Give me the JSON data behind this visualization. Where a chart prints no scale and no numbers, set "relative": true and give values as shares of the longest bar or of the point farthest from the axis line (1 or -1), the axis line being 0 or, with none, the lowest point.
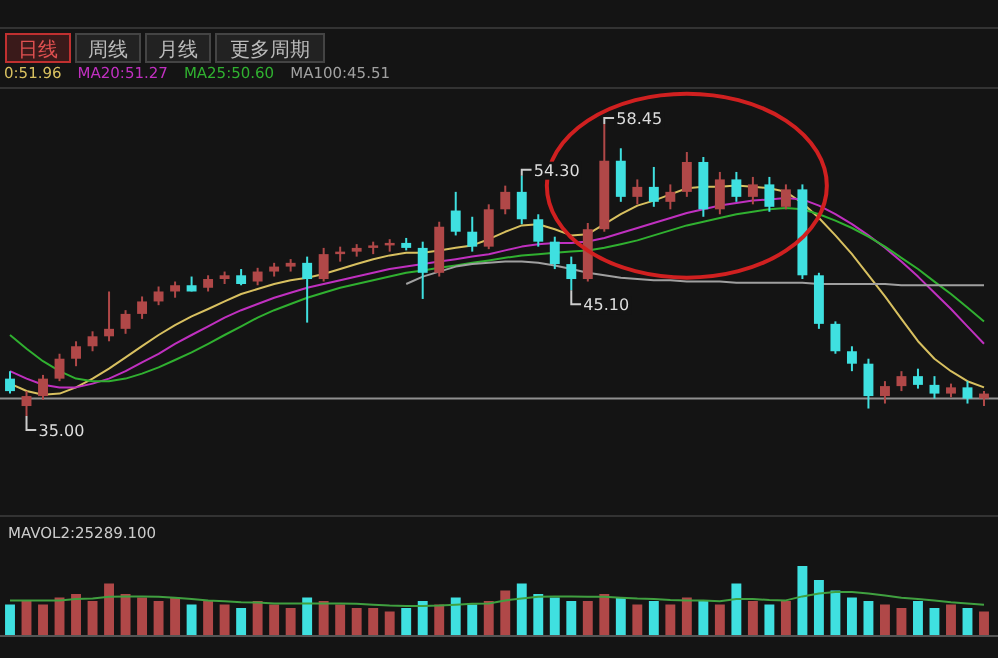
{
  "chart_data": [
    {
      "type": "candlestick",
      "categories": [
        null,
        null,
        null,
        null,
        null,
        null,
        null,
        null,
        null,
        null,
        null,
        null,
        null,
        null,
        null,
        null,
        null,
        null,
        null,
        null,
        null,
        null,
        null,
        null,
        null,
        null,
        null,
        null,
        null,
        null,
        null,
        null,
        null,
        null,
        null,
        null,
        null,
        null,
        null,
        null,
        null,
        null,
        null,
        null,
        null,
        null,
        null,
        null,
        null,
        null,
        null,
        null,
        null,
        null,
        null,
        null,
        null,
        null,
        null,
        null
      ],
      "ohlc": [
        [
          38.0,
          38.6,
          36.8,
          37.0
        ],
        [
          35.8,
          37.0,
          35.0,
          36.6
        ],
        [
          36.6,
          38.3,
          36.3,
          38.0
        ],
        [
          38.0,
          40.0,
          37.8,
          39.6
        ],
        [
          39.6,
          41.0,
          39.0,
          40.6
        ],
        [
          40.6,
          41.8,
          40.2,
          41.4
        ],
        [
          41.4,
          45.0,
          41.0,
          42.0
        ],
        [
          42.0,
          43.5,
          41.6,
          43.2
        ],
        [
          43.2,
          44.6,
          42.8,
          44.2
        ],
        [
          44.2,
          45.4,
          43.9,
          45.0
        ],
        [
          45.0,
          45.8,
          44.5,
          45.5
        ],
        [
          45.5,
          46.2,
          45.0,
          45.0
        ],
        [
          45.3,
          46.3,
          45.0,
          46.0
        ],
        [
          46.0,
          46.6,
          45.6,
          46.3
        ],
        [
          46.3,
          46.8,
          45.5,
          45.6
        ],
        [
          45.8,
          46.9,
          45.5,
          46.6
        ],
        [
          46.6,
          47.3,
          46.2,
          47.0
        ],
        [
          47.0,
          47.6,
          46.6,
          47.3
        ],
        [
          47.3,
          47.8,
          42.5,
          46.0
        ],
        [
          46.0,
          48.5,
          45.8,
          48.0
        ],
        [
          48.0,
          48.6,
          47.4,
          48.2
        ],
        [
          48.2,
          48.8,
          47.8,
          48.5
        ],
        [
          48.5,
          49.0,
          48.0,
          48.7
        ],
        [
          48.7,
          49.2,
          48.2,
          48.9
        ],
        [
          48.9,
          49.3,
          48.3,
          48.5
        ],
        [
          48.5,
          49.0,
          44.4,
          46.5
        ],
        [
          46.5,
          50.6,
          46.2,
          50.2
        ],
        [
          51.5,
          53.0,
          49.5,
          49.8
        ],
        [
          49.8,
          51.0,
          48.2,
          48.6
        ],
        [
          48.6,
          52.0,
          48.4,
          51.6
        ],
        [
          51.6,
          53.5,
          51.2,
          53.0
        ],
        [
          53.0,
          54.3,
          50.4,
          50.8
        ],
        [
          50.8,
          51.2,
          48.6,
          49.0
        ],
        [
          49.0,
          49.4,
          46.8,
          47.2
        ],
        [
          47.2,
          47.8,
          45.1,
          46.0
        ],
        [
          46.0,
          50.5,
          45.8,
          50.0
        ],
        [
          50.0,
          58.45,
          49.8,
          55.5
        ],
        [
          55.5,
          56.5,
          52.2,
          52.6
        ],
        [
          52.6,
          54.0,
          52.0,
          53.4
        ],
        [
          53.4,
          55.0,
          51.8,
          52.2
        ],
        [
          52.2,
          53.6,
          51.6,
          53.0
        ],
        [
          53.0,
          56.2,
          52.6,
          55.4
        ],
        [
          55.4,
          55.8,
          51.0,
          51.6
        ],
        [
          51.6,
          54.6,
          51.2,
          54.0
        ],
        [
          54.0,
          54.6,
          52.2,
          52.6
        ],
        [
          52.6,
          54.2,
          52.0,
          53.6
        ],
        [
          53.6,
          54.2,
          51.4,
          51.8
        ],
        [
          51.8,
          53.6,
          51.6,
          53.2
        ],
        [
          53.2,
          53.6,
          46.0,
          46.3
        ],
        [
          46.3,
          46.5,
          42.0,
          42.4
        ],
        [
          42.4,
          42.6,
          40.0,
          40.2
        ],
        [
          40.2,
          40.6,
          38.6,
          39.2
        ],
        [
          39.2,
          39.6,
          35.6,
          36.6
        ],
        [
          36.6,
          37.8,
          36.0,
          37.4
        ],
        [
          37.4,
          38.6,
          37.0,
          38.2
        ],
        [
          38.2,
          38.8,
          37.2,
          37.5
        ],
        [
          37.5,
          38.2,
          36.4,
          36.8
        ],
        [
          36.8,
          37.6,
          36.5,
          37.3
        ],
        [
          37.3,
          37.8,
          36.0,
          36.4
        ],
        [
          36.4,
          37.0,
          35.8,
          36.8
        ]
      ],
      "colors": [
        "#3fe0e0",
        "#b04848",
        "#b04848",
        "#b04848",
        "#b04848",
        "#b04848",
        "#b04848",
        "#b04848",
        "#b04848",
        "#b04848",
        "#b04848",
        "#3fe0e0",
        "#b04848",
        "#b04848",
        "#3fe0e0",
        "#b04848",
        "#b04848",
        "#b04848",
        "#3fe0e0",
        "#b04848",
        "#b04848",
        "#b04848",
        "#b04848",
        "#b04848",
        "#3fe0e0",
        "#3fe0e0",
        "#b04848",
        "#3fe0e0",
        "#3fe0e0",
        "#b04848",
        "#b04848",
        "#3fe0e0",
        "#3fe0e0",
        "#3fe0e0",
        "#3fe0e0",
        "#b04848",
        "#b04848",
        "#3fe0e0",
        "#b04848",
        "#3fe0e0",
        "#b04848",
        "#b04848",
        "#3fe0e0",
        "#b04848",
        "#3fe0e0",
        "#b04848",
        "#3fe0e0",
        "#b04848",
        "#3fe0e0",
        "#3fe0e0",
        "#3fe0e0",
        "#3fe0e0",
        "#3fe0e0",
        "#b04848",
        "#b04848",
        "#3fe0e0",
        "#3fe0e0",
        "#b04848",
        "#3fe0e0",
        "#b04848"
      ],
      "series": [
        {
          "type": "line",
          "name": "0:51.96",
          "color": "#d8c060",
          "values": [
            37.6,
            37.0,
            36.7,
            36.8,
            37.3,
            38.0,
            38.8,
            39.7,
            40.6,
            41.5,
            42.3,
            43.0,
            43.6,
            44.2,
            44.8,
            45.2,
            45.6,
            45.9,
            46.1,
            46.4,
            46.8,
            47.2,
            47.6,
            47.9,
            48.1,
            48.1,
            48.3,
            48.5,
            48.7,
            49.2,
            49.8,
            50.3,
            50.4,
            50.0,
            49.5,
            49.6,
            50.4,
            51.2,
            51.9,
            52.3,
            52.8,
            53.3,
            53.4,
            53.4,
            53.5,
            53.4,
            53.3,
            53.0,
            52.1,
            50.9,
            49.5,
            48.0,
            46.3,
            44.6,
            42.8,
            41.0,
            39.6,
            38.6,
            37.8,
            37.3
          ]
        },
        {
          "type": "line",
          "name": "MA20:51.27",
          "color": "#c030c0",
          "values": [
            38.6,
            38.0,
            37.5,
            37.3,
            37.3,
            37.6,
            38.0,
            38.6,
            39.3,
            40.0,
            40.8,
            41.5,
            42.2,
            42.9,
            43.5,
            44.0,
            44.5,
            44.9,
            45.3,
            45.6,
            45.9,
            46.2,
            46.5,
            46.8,
            47.0,
            47.2,
            47.4,
            47.6,
            47.8,
            48.0,
            48.3,
            48.6,
            48.8,
            48.9,
            48.9,
            49.0,
            49.3,
            49.7,
            50.1,
            50.5,
            50.9,
            51.3,
            51.6,
            51.9,
            52.1,
            52.3,
            52.4,
            52.5,
            52.4,
            51.9,
            51.2,
            50.4,
            49.5,
            48.5,
            47.4,
            46.2,
            44.9,
            43.6,
            42.2,
            40.8
          ]
        },
        {
          "type": "line",
          "name": "MA25:50.60",
          "color": "#30b030",
          "values": [
            41.5,
            40.4,
            39.4,
            38.6,
            38.0,
            37.8,
            37.8,
            38.0,
            38.4,
            38.9,
            39.5,
            40.1,
            40.8,
            41.5,
            42.2,
            42.9,
            43.5,
            44.0,
            44.5,
            44.9,
            45.3,
            45.6,
            45.9,
            46.2,
            46.5,
            46.7,
            46.9,
            47.1,
            47.3,
            47.5,
            47.7,
            47.9,
            48.0,
            48.1,
            48.2,
            48.3,
            48.5,
            48.8,
            49.1,
            49.5,
            49.9,
            50.3,
            50.6,
            50.9,
            51.2,
            51.4,
            51.6,
            51.7,
            51.6,
            51.2,
            50.7,
            50.1,
            49.4,
            48.6,
            47.7,
            46.8,
            45.8,
            44.8,
            43.7,
            42.6
          ]
        },
        {
          "type": "line",
          "name": "MA100:45.51",
          "color": "#a0a0a0",
          "values": [
            null,
            null,
            null,
            null,
            null,
            null,
            null,
            null,
            null,
            null,
            null,
            null,
            null,
            null,
            null,
            null,
            null,
            null,
            null,
            null,
            null,
            null,
            null,
            null,
            45.6,
            46.2,
            46.6,
            47.0,
            47.2,
            47.3,
            47.4,
            47.4,
            47.3,
            47.1,
            46.8,
            46.5,
            46.3,
            46.1,
            46.0,
            45.9,
            45.9,
            45.8,
            45.8,
            45.8,
            45.7,
            45.7,
            45.7,
            45.7,
            45.7,
            45.6,
            45.6,
            45.6,
            45.6,
            45.6,
            45.5,
            45.5,
            45.5,
            45.5,
            45.5,
            45.5
          ]
        }
      ],
      "annotations": [
        "日线",
        "周线",
        "月线",
        "更多周期",
        "54.30",
        "58.45",
        "45.10",
        "35.00"
      ],
      "ref_lines": [
        {
          "axis": "y",
          "value": 36.4,
          "color": "#909090"
        }
      ],
      "legend": "top left"
    },
    {
      "type": "bar",
      "relative": true,
      "categories": [
        null,
        null,
        null,
        null,
        null,
        null,
        null,
        null,
        null,
        null,
        null,
        null,
        null,
        null,
        null,
        null,
        null,
        null,
        null,
        null,
        null,
        null,
        null,
        null,
        null,
        null,
        null,
        null,
        null,
        null,
        null,
        null,
        null,
        null,
        null,
        null,
        null,
        null,
        null,
        null,
        null,
        null,
        null,
        null,
        null,
        null,
        null,
        null,
        null,
        null,
        null,
        null,
        null,
        null,
        null,
        null,
        null,
        null,
        null,
        null
      ],
      "values": [
        0.45,
        0.5,
        0.45,
        0.55,
        0.6,
        0.5,
        0.75,
        0.6,
        0.55,
        0.5,
        0.55,
        0.45,
        0.5,
        0.45,
        0.4,
        0.5,
        0.45,
        0.4,
        0.55,
        0.5,
        0.45,
        0.4,
        0.4,
        0.35,
        0.4,
        0.5,
        0.45,
        0.55,
        0.45,
        0.5,
        0.65,
        0.75,
        0.6,
        0.55,
        0.5,
        0.5,
        0.6,
        0.55,
        0.45,
        0.5,
        0.45,
        0.55,
        0.5,
        0.45,
        0.75,
        0.5,
        0.45,
        0.5,
        1.0,
        0.8,
        0.65,
        0.55,
        0.5,
        0.45,
        0.4,
        0.5,
        0.4,
        0.45,
        0.4,
        0.35
      ],
      "colors": [
        "#3fe0e0",
        "#b04848",
        "#b04848",
        "#b04848",
        "#b04848",
        "#b04848",
        "#b04848",
        "#b04848",
        "#b04848",
        "#b04848",
        "#b04848",
        "#3fe0e0",
        "#b04848",
        "#b04848",
        "#3fe0e0",
        "#b04848",
        "#b04848",
        "#b04848",
        "#3fe0e0",
        "#b04848",
        "#b04848",
        "#b04848",
        "#b04848",
        "#b04848",
        "#3fe0e0",
        "#3fe0e0",
        "#b04848",
        "#3fe0e0",
        "#3fe0e0",
        "#b04848",
        "#b04848",
        "#3fe0e0",
        "#3fe0e0",
        "#3fe0e0",
        "#3fe0e0",
        "#b04848",
        "#b04848",
        "#3fe0e0",
        "#b04848",
        "#3fe0e0",
        "#b04848",
        "#b04848",
        "#3fe0e0",
        "#b04848",
        "#3fe0e0",
        "#b04848",
        "#3fe0e0",
        "#b04848",
        "#3fe0e0",
        "#3fe0e0",
        "#3fe0e0",
        "#3fe0e0",
        "#3fe0e0",
        "#b04848",
        "#b04848",
        "#3fe0e0",
        "#3fe0e0",
        "#b04848",
        "#3fe0e0",
        "#b04848"
      ],
      "annotations": [
        "MAVOL2:25289.100"
      ]
    },
    {
      "type": "line",
      "relative": true,
      "categories": [
        null,
        null,
        null,
        null,
        null,
        null,
        null,
        null,
        null,
        null,
        null,
        null,
        null,
        null,
        null,
        null,
        null,
        null,
        null,
        null,
        null,
        null,
        null,
        null,
        null,
        null,
        null,
        null,
        null,
        null,
        null,
        null,
        null,
        null,
        null,
        null,
        null,
        null,
        null,
        null,
        null,
        null,
        null,
        null,
        null,
        null,
        null,
        null,
        null,
        null,
        null,
        null,
        null,
        null,
        null,
        null,
        null,
        null,
        null,
        null
      ],
      "series": [
        {
          "color": "#40a040",
          "values": [
            0.81,
            0.81,
            0.81,
            0.81,
            0.84,
            0.85,
            0.89,
            0.9,
            0.9,
            0.89,
            0.87,
            0.84,
            0.81,
            0.79,
            0.77,
            0.76,
            0.74,
            0.74,
            0.74,
            0.74,
            0.74,
            0.73,
            0.71,
            0.69,
            0.68,
            0.68,
            0.69,
            0.71,
            0.73,
            0.74,
            0.81,
            0.85,
            0.89,
            0.9,
            0.9,
            0.89,
            0.89,
            0.87,
            0.85,
            0.84,
            0.82,
            0.81,
            0.81,
            0.79,
            0.84,
            0.84,
            0.82,
            0.81,
            0.9,
            0.97,
            1.0,
            1.0,
            0.97,
            0.92,
            0.87,
            0.84,
            0.81,
            0.77,
            0.74,
            0.71
          ]
        }
      ]
    }
  ]
}
